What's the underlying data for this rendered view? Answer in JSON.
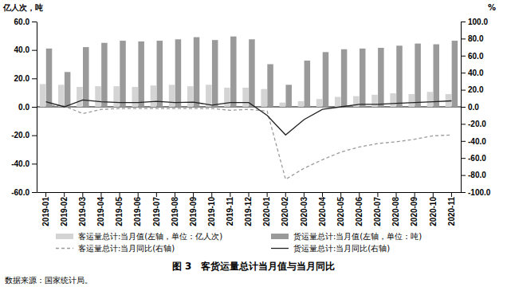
{
  "chart_data": {
    "type": "bar",
    "title": "图 3　客货运量总计当月值与当月同比",
    "source": "数据来源：国家统计局。",
    "y_label": "亿人次，吨",
    "y2_label": "%",
    "grid": false,
    "legend": "bottom",
    "categories": [
      "2019-01",
      "2019-02",
      "2019-03",
      "2019-04",
      "2019-05",
      "2019-06",
      "2019-07",
      "2019-08",
      "2019-09",
      "2019-10",
      "2019-11",
      "2019-12",
      "2020-01",
      "2020-02",
      "2020-03",
      "2020-04",
      "2020-05",
      "2020-06",
      "2020-07",
      "2020-08",
      "2020-09",
      "2020-10",
      "2020-11"
    ],
    "ylim": [
      -60,
      60
    ],
    "yticks": [
      {
        "value": -60,
        "label": "-60.0"
      },
      {
        "value": -40,
        "label": "-40.0"
      },
      {
        "value": -20,
        "label": "-20.0"
      },
      {
        "value": 0,
        "label": "0.0"
      },
      {
        "value": 20,
        "label": "20.0"
      },
      {
        "value": 40,
        "label": "40.0"
      },
      {
        "value": 60,
        "label": "60.0"
      }
    ],
    "y2lim": [
      -100,
      100
    ],
    "y2ticks": [
      {
        "value": -100,
        "label": "-100.0"
      },
      {
        "value": -80,
        "label": "-80.0"
      },
      {
        "value": -60,
        "label": "-60.0"
      },
      {
        "value": -40,
        "label": "-40.0"
      },
      {
        "value": -20,
        "label": "-20.0"
      },
      {
        "value": 0,
        "label": "0.0"
      },
      {
        "value": 20,
        "label": "20.0"
      },
      {
        "value": 40,
        "label": "40.0"
      },
      {
        "value": 60,
        "label": "60.0"
      },
      {
        "value": 80,
        "label": "80.0"
      },
      {
        "value": 100,
        "label": "100.0"
      }
    ],
    "series": [
      {
        "name": "客运量总计:当月值(左轴，单位：亿人次)",
        "type": "bar",
        "axis": "y",
        "color": "#d4d4d4",
        "values": [
          16,
          15.5,
          14,
          14.5,
          14.5,
          14,
          15,
          15.5,
          14.5,
          15.5,
          13.5,
          13.5,
          12.5,
          3,
          4,
          5.5,
          7,
          7.5,
          8.5,
          9.5,
          9,
          10.5,
          9
        ]
      },
      {
        "name": "货运量总计:当月值(左轴，单位：吨)",
        "type": "bar",
        "axis": "y",
        "color": "#9a9a9a",
        "values": [
          41,
          24.5,
          42,
          45,
          46.5,
          46,
          46.5,
          47.5,
          49,
          47,
          49.5,
          47.5,
          30,
          15.5,
          32.5,
          38.5,
          40.5,
          41,
          41.5,
          43,
          44.5,
          44,
          46.5
        ]
      },
      {
        "name": "客运量总计:当月同比(右轴)",
        "type": "line",
        "axis": "y2",
        "color": "#9a9a9a",
        "line_style": "dashed",
        "values": [
          2,
          1,
          -8,
          -3,
          -2,
          -2,
          -2,
          -2,
          -2,
          -2,
          -4,
          -3,
          -5,
          -85,
          -72,
          -62,
          -53,
          -47,
          -43,
          -41,
          -38,
          -34,
          -33
        ]
      },
      {
        "name": "货运量总计:当月同比(右轴)",
        "type": "line",
        "axis": "y2",
        "color": "#222222",
        "line_style": "solid",
        "values": [
          6,
          0,
          8,
          6,
          5,
          5,
          6.5,
          5,
          5.5,
          2,
          5,
          5,
          -10,
          -33,
          -15,
          -3,
          0,
          3,
          3,
          4,
          5,
          6,
          7
        ]
      }
    ]
  }
}
